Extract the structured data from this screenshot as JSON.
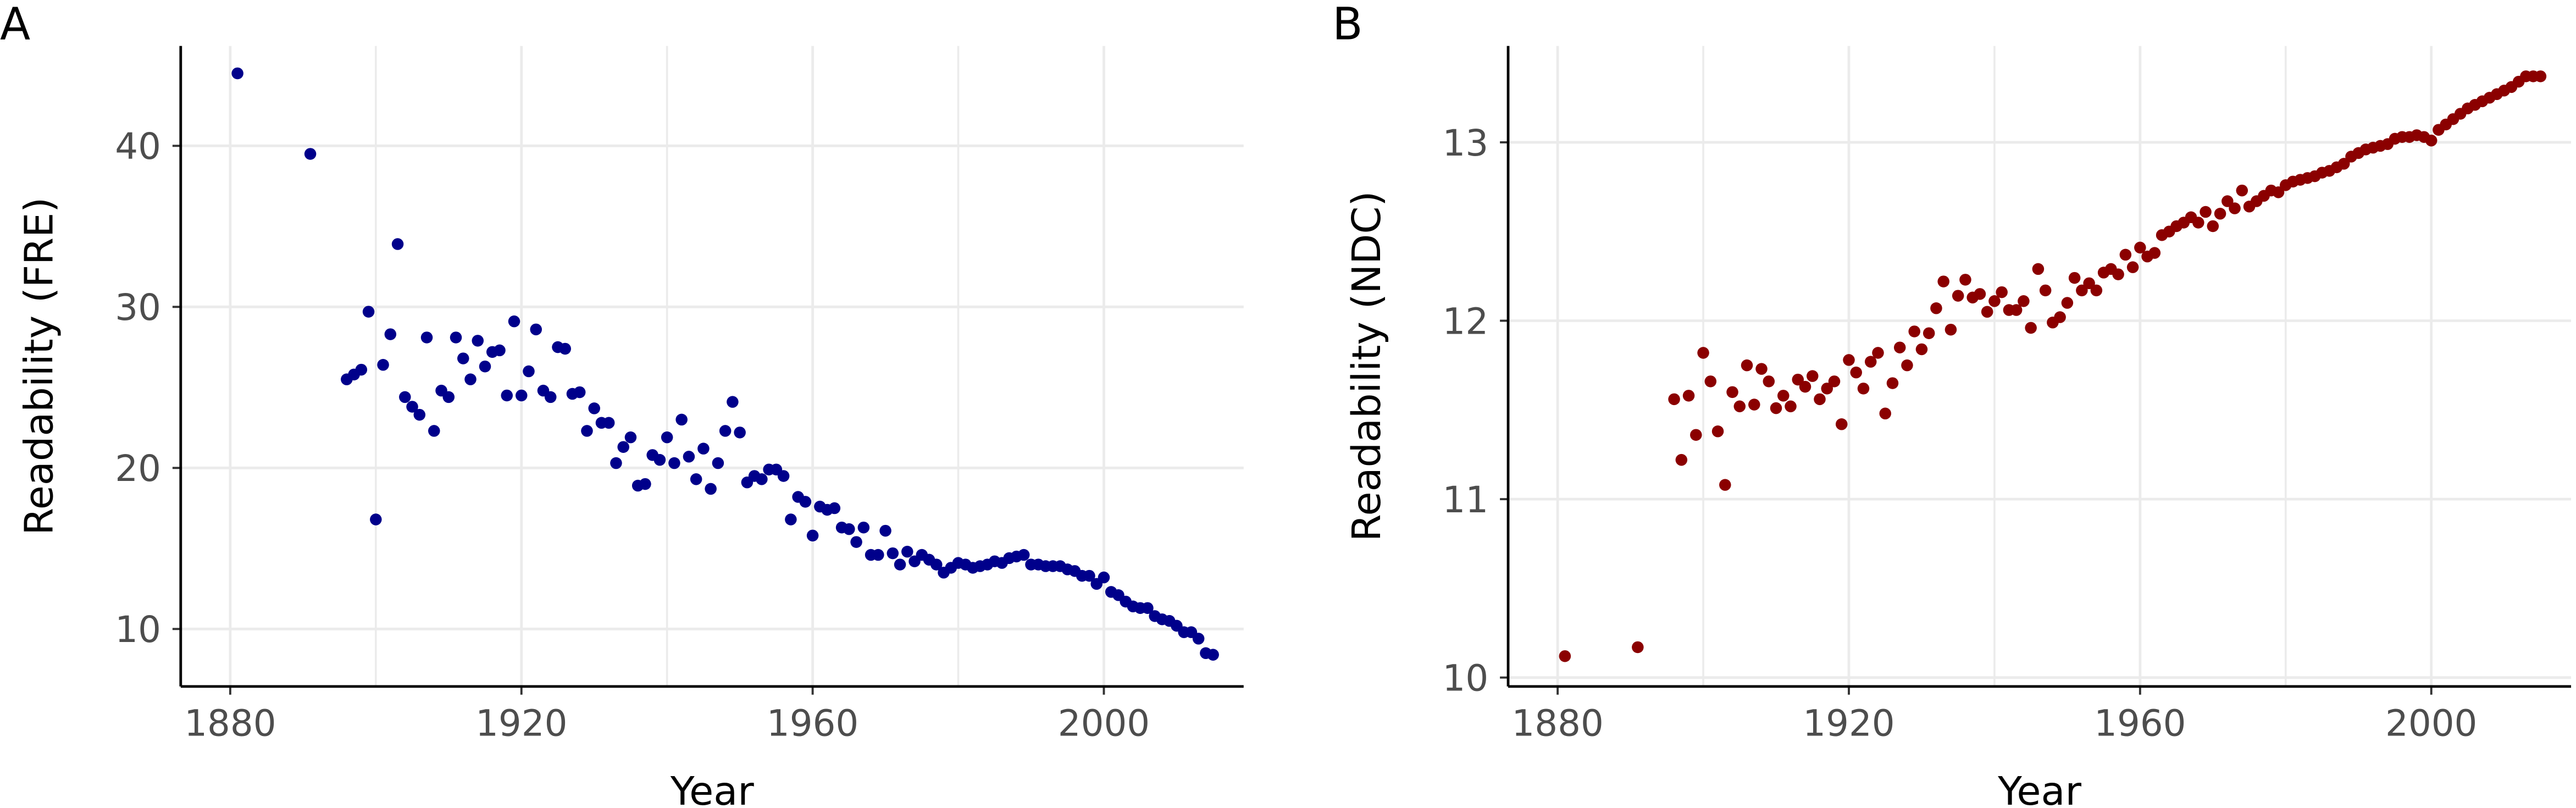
{
  "chart_data": [
    {
      "type": "scatter",
      "panel_label": "A",
      "x_label": "Year",
      "y_label": "Readability (FRE)",
      "color": "#00008b",
      "xlim": [
        1873.2,
        2019.2
      ],
      "ylim": [
        6.43,
        46.2
      ],
      "xticks": [
        1880,
        1920,
        1960,
        2000
      ],
      "x_minor_ticks": [
        1900,
        1940,
        1980
      ],
      "yticks": [
        10,
        20,
        30,
        40
      ],
      "grid": true,
      "x": [
        1881,
        1891,
        1896,
        1897,
        1898,
        1899,
        1900,
        1901,
        1902,
        1903,
        1904,
        1905,
        1906,
        1907,
        1908,
        1909,
        1910,
        1911,
        1912,
        1913,
        1914,
        1915,
        1916,
        1917,
        1918,
        1919,
        1920,
        1921,
        1922,
        1923,
        1924,
        1925,
        1926,
        1927,
        1928,
        1929,
        1930,
        1931,
        1932,
        1933,
        1934,
        1935,
        1936,
        1937,
        1938,
        1939,
        1940,
        1941,
        1942,
        1943,
        1944,
        1945,
        1946,
        1947,
        1948,
        1949,
        1950,
        1951,
        1952,
        1953,
        1954,
        1955,
        1956,
        1957,
        1958,
        1959,
        1960,
        1961,
        1962,
        1963,
        1964,
        1965,
        1966,
        1967,
        1968,
        1969,
        1970,
        1971,
        1972,
        1973,
        1974,
        1975,
        1976,
        1977,
        1978,
        1979,
        1980,
        1981,
        1982,
        1983,
        1984,
        1985,
        1986,
        1987,
        1988,
        1989,
        1990,
        1991,
        1992,
        1993,
        1994,
        1995,
        1996,
        1997,
        1998,
        1999,
        2000,
        2001,
        2002,
        2003,
        2004,
        2005,
        2006,
        2007,
        2008,
        2009,
        2010,
        2011,
        2012,
        2013,
        2014,
        2015
      ],
      "values": [
        44.5,
        39.5,
        25.5,
        25.8,
        26.1,
        29.7,
        16.8,
        26.4,
        28.3,
        33.9,
        24.4,
        23.8,
        23.3,
        28.1,
        22.3,
        24.8,
        24.4,
        28.1,
        26.8,
        25.5,
        27.9,
        26.3,
        27.2,
        27.3,
        24.5,
        29.1,
        24.5,
        26.0,
        28.6,
        24.8,
        24.4,
        27.5,
        27.4,
        24.6,
        24.7,
        22.3,
        23.7,
        22.8,
        22.8,
        20.3,
        21.3,
        21.9,
        18.9,
        19.0,
        20.8,
        20.5,
        21.9,
        20.3,
        23.0,
        20.7,
        19.3,
        21.2,
        18.7,
        20.3,
        22.3,
        24.1,
        22.2,
        19.1,
        19.5,
        19.3,
        19.9,
        19.9,
        19.5,
        16.8,
        18.2,
        17.9,
        15.8,
        17.6,
        17.4,
        17.5,
        16.3,
        16.2,
        15.4,
        16.3,
        14.6,
        14.6,
        16.1,
        14.7,
        14.0,
        14.8,
        14.2,
        14.6,
        14.3,
        14.0,
        13.5,
        13.8,
        14.1,
        14.0,
        13.8,
        13.9,
        14.0,
        14.2,
        14.1,
        14.4,
        14.5,
        14.6,
        14.0,
        14.0,
        13.9,
        13.9,
        13.9,
        13.7,
        13.6,
        13.3,
        13.3,
        12.8,
        13.2,
        12.3,
        12.1,
        11.7,
        11.4,
        11.3,
        11.3,
        10.8,
        10.6,
        10.5,
        10.2,
        9.8,
        9.8,
        9.4,
        8.5,
        8.4
      ]
    },
    {
      "type": "scatter",
      "panel_label": "B",
      "x_label": "Year",
      "y_label": "Readability (NDC)",
      "color": "#8b0000",
      "xlim": [
        1873.2,
        2019.2
      ],
      "ylim": [
        9.95,
        13.54
      ],
      "xticks": [
        1880,
        1920,
        1960,
        2000
      ],
      "x_minor_ticks": [
        1900,
        1940,
        1980
      ],
      "yticks": [
        10,
        11,
        12,
        13
      ],
      "grid": true,
      "x": [
        1881,
        1891,
        1896,
        1897,
        1898,
        1899,
        1900,
        1901,
        1902,
        1903,
        1904,
        1905,
        1906,
        1907,
        1908,
        1909,
        1910,
        1911,
        1912,
        1913,
        1914,
        1915,
        1916,
        1917,
        1918,
        1919,
        1920,
        1921,
        1922,
        1923,
        1924,
        1925,
        1926,
        1927,
        1928,
        1929,
        1930,
        1931,
        1932,
        1933,
        1934,
        1935,
        1936,
        1937,
        1938,
        1939,
        1940,
        1941,
        1942,
        1943,
        1944,
        1945,
        1946,
        1947,
        1948,
        1949,
        1950,
        1951,
        1952,
        1953,
        1954,
        1955,
        1956,
        1957,
        1958,
        1959,
        1960,
        1961,
        1962,
        1963,
        1964,
        1965,
        1966,
        1967,
        1968,
        1969,
        1970,
        1971,
        1972,
        1973,
        1974,
        1975,
        1976,
        1977,
        1978,
        1979,
        1980,
        1981,
        1982,
        1983,
        1984,
        1985,
        1986,
        1987,
        1988,
        1989,
        1990,
        1991,
        1992,
        1993,
        1994,
        1995,
        1996,
        1997,
        1998,
        1999,
        2000,
        2001,
        2002,
        2003,
        2004,
        2005,
        2006,
        2007,
        2008,
        2009,
        2010,
        2011,
        2012,
        2013,
        2014,
        2015
      ],
      "values": [
        10.12,
        10.17,
        11.56,
        11.22,
        11.58,
        11.36,
        11.82,
        11.66,
        11.38,
        11.08,
        11.6,
        11.52,
        11.75,
        11.53,
        11.73,
        11.66,
        11.51,
        11.58,
        11.52,
        11.67,
        11.63,
        11.69,
        11.56,
        11.62,
        11.66,
        11.42,
        11.78,
        11.71,
        11.62,
        11.77,
        11.82,
        11.48,
        11.65,
        11.85,
        11.75,
        11.94,
        11.84,
        11.93,
        12.07,
        12.22,
        11.95,
        12.14,
        12.23,
        12.13,
        12.15,
        12.05,
        12.11,
        12.16,
        12.06,
        12.06,
        12.11,
        11.96,
        12.29,
        12.17,
        11.99,
        12.02,
        12.1,
        12.24,
        12.17,
        12.21,
        12.17,
        12.27,
        12.29,
        12.26,
        12.37,
        12.3,
        12.41,
        12.36,
        12.38,
        12.48,
        12.5,
        12.53,
        12.55,
        12.58,
        12.55,
        12.61,
        12.53,
        12.6,
        12.67,
        12.63,
        12.73,
        12.64,
        12.67,
        12.7,
        12.73,
        12.72,
        12.76,
        12.78,
        12.79,
        12.8,
        12.81,
        12.83,
        12.84,
        12.86,
        12.88,
        12.92,
        12.94,
        12.96,
        12.97,
        12.98,
        12.99,
        13.02,
        13.03,
        13.03,
        13.04,
        13.03,
        13.01,
        13.07,
        13.1,
        13.13,
        13.16,
        13.19,
        13.21,
        13.23,
        13.25,
        13.27,
        13.29,
        13.31,
        13.34,
        13.37,
        13.37,
        13.37
      ]
    }
  ]
}
